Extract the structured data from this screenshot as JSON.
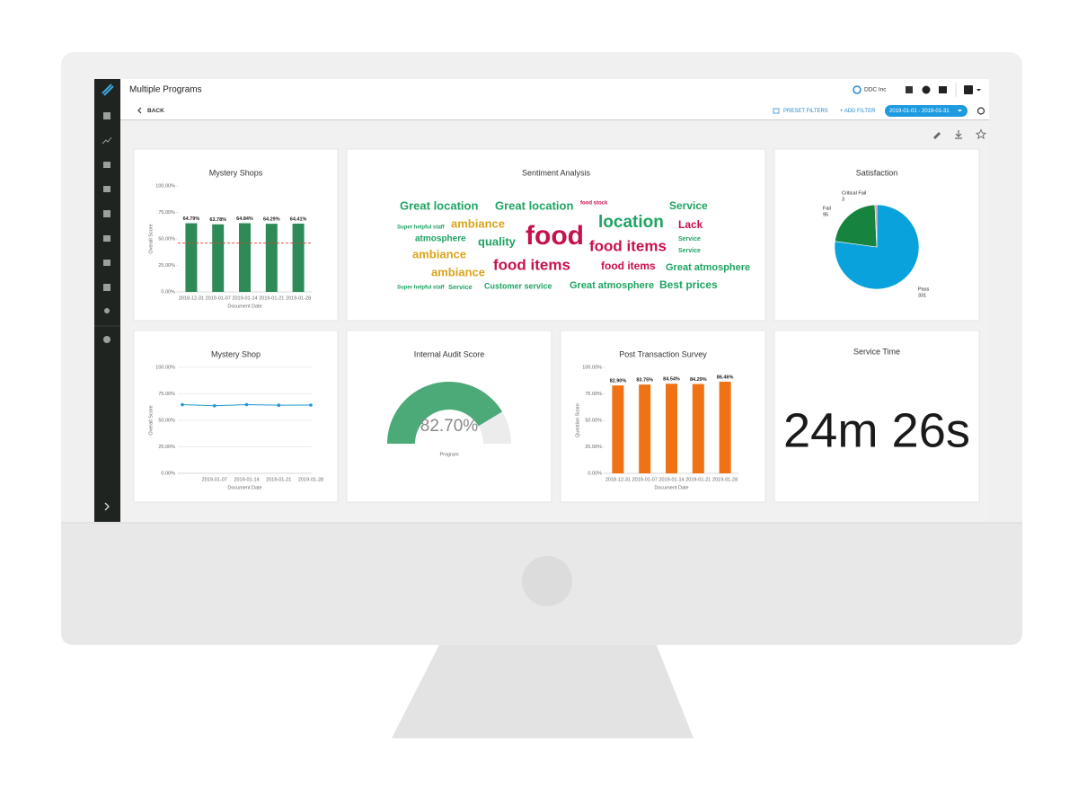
{
  "header": {
    "title": "Multiple Programs",
    "company": "DDC Inc"
  },
  "toolbar": {
    "back": "BACK",
    "preset_filters": "PRESET FILTERS",
    "add_filter": "+ ADD FILTER",
    "date_range": "2019-01-01 - 2019-01-31"
  },
  "chart_data": [
    {
      "type": "bar",
      "title": "Mystery Shops",
      "x_label": "Document Date",
      "y_label": "Overall Score",
      "categories": [
        "2018-12-31",
        "2019-01-07",
        "2019-01-14",
        "2019-01-21",
        "2019-01-28"
      ],
      "values": [
        64.79,
        63.78,
        64.84,
        64.29,
        64.41
      ],
      "value_labels": [
        "64.79%",
        "63.78%",
        "64.84%",
        "64.29%",
        "64.41%"
      ],
      "color": "#2e8b57",
      "reference_line": 46,
      "reference_color": "#e53935",
      "ylim": [
        0,
        100
      ],
      "yticks": [
        {
          "value": 0,
          "label": "0.00%"
        },
        {
          "value": 25,
          "label": "25.00%"
        },
        {
          "value": 50,
          "label": "50.00%"
        },
        {
          "value": 75,
          "label": "75.00%"
        },
        {
          "value": 100,
          "label": "100.00%"
        }
      ],
      "grid": false
    },
    {
      "type": "wordcloud",
      "title": "Sentiment Analysis",
      "words": [
        {
          "text": "Great location",
          "color": "#1fa463"
        },
        {
          "text": "Great location",
          "color": "#1fa463"
        },
        {
          "text": "food stock",
          "color": "#c8104a"
        },
        {
          "text": "Service",
          "color": "#1fa463"
        },
        {
          "text": "Super helpful staff",
          "color": "#1fa463"
        },
        {
          "text": "ambiance",
          "color": "#d9a51c"
        },
        {
          "text": "location",
          "color": "#1fa463"
        },
        {
          "text": "Lack",
          "color": "#c8104a"
        },
        {
          "text": "atmosphere",
          "color": "#1fa463"
        },
        {
          "text": "quality",
          "color": "#1fa463"
        },
        {
          "text": "food",
          "color": "#c8104a"
        },
        {
          "text": "food items",
          "color": "#c8104a"
        },
        {
          "text": "Service",
          "color": "#1fa463"
        },
        {
          "text": "Service",
          "color": "#1fa463"
        },
        {
          "text": "ambiance",
          "color": "#d9a51c"
        },
        {
          "text": "ambiance",
          "color": "#d9a51c"
        },
        {
          "text": "food items",
          "color": "#c8104a"
        },
        {
          "text": "food items",
          "color": "#c8104a"
        },
        {
          "text": "Great atmosphere",
          "color": "#1fa463"
        },
        {
          "text": "Super helpful staff",
          "color": "#1fa463"
        },
        {
          "text": "Service",
          "color": "#1fa463"
        },
        {
          "text": "Customer service",
          "color": "#1fa463"
        },
        {
          "text": "Great atmosphere",
          "color": "#1fa463"
        },
        {
          "text": "Best prices",
          "color": "#1fa463"
        }
      ]
    },
    {
      "type": "pie",
      "title": "Satisfaction",
      "series": [
        {
          "name": "Pass",
          "color": "#0aa2dd",
          "values": [
            331
          ]
        },
        {
          "name": "Fail",
          "color": "#16843f",
          "values": [
            95
          ]
        },
        {
          "name": "Critical Fail",
          "color": "#e7839a",
          "values": [
            3
          ]
        }
      ]
    },
    {
      "type": "line",
      "title": "Mystery Shop",
      "x_label": "Document Date",
      "y_label": "Overall Score",
      "categories": [
        null,
        "2019-01-07",
        "2019-01-14",
        "2019-01-21",
        "2019-01-28"
      ],
      "values": [
        64.79,
        63.78,
        64.84,
        64.29,
        64.41
      ],
      "color": "#2196d3",
      "ylim": [
        0,
        100
      ],
      "yticks": [
        {
          "value": 0,
          "label": "0.00%"
        },
        {
          "value": 25,
          "label": "25.00%"
        },
        {
          "value": 50,
          "label": "50.00%"
        },
        {
          "value": 75,
          "label": "75.00%"
        },
        {
          "value": 100,
          "label": "100.00%"
        }
      ],
      "grid": true
    },
    {
      "type": "gauge",
      "title": "Internal Audit Score",
      "value": 82.7,
      "value_label": "82.70%",
      "label": "Program",
      "color": "#4caa78",
      "ylim": [
        0,
        100
      ]
    },
    {
      "type": "bar",
      "title": "Post Transaction Survey",
      "x_label": "Document Date",
      "y_label": "Question Score",
      "categories": [
        "2018-12-31",
        "2019-01-07",
        "2019-01-14",
        "2019-01-21",
        "2019-01-28"
      ],
      "values": [
        82.9,
        83.75,
        84.54,
        84.29,
        86.46
      ],
      "value_labels": [
        "82.90%",
        "83.75%",
        "84.54%",
        "84.29%",
        "86.46%"
      ],
      "color": "#f07214",
      "ylim": [
        0,
        100
      ],
      "yticks": [
        {
          "value": 0,
          "label": "0.00%"
        },
        {
          "value": 25,
          "label": "25.00%"
        },
        {
          "value": 50,
          "label": "50.00%"
        },
        {
          "value": 75,
          "label": "75.00%"
        },
        {
          "value": 100,
          "label": "100.00%"
        }
      ],
      "grid": false
    },
    {
      "type": "kpi",
      "title": "Service Time",
      "text": "24m 26s"
    }
  ]
}
